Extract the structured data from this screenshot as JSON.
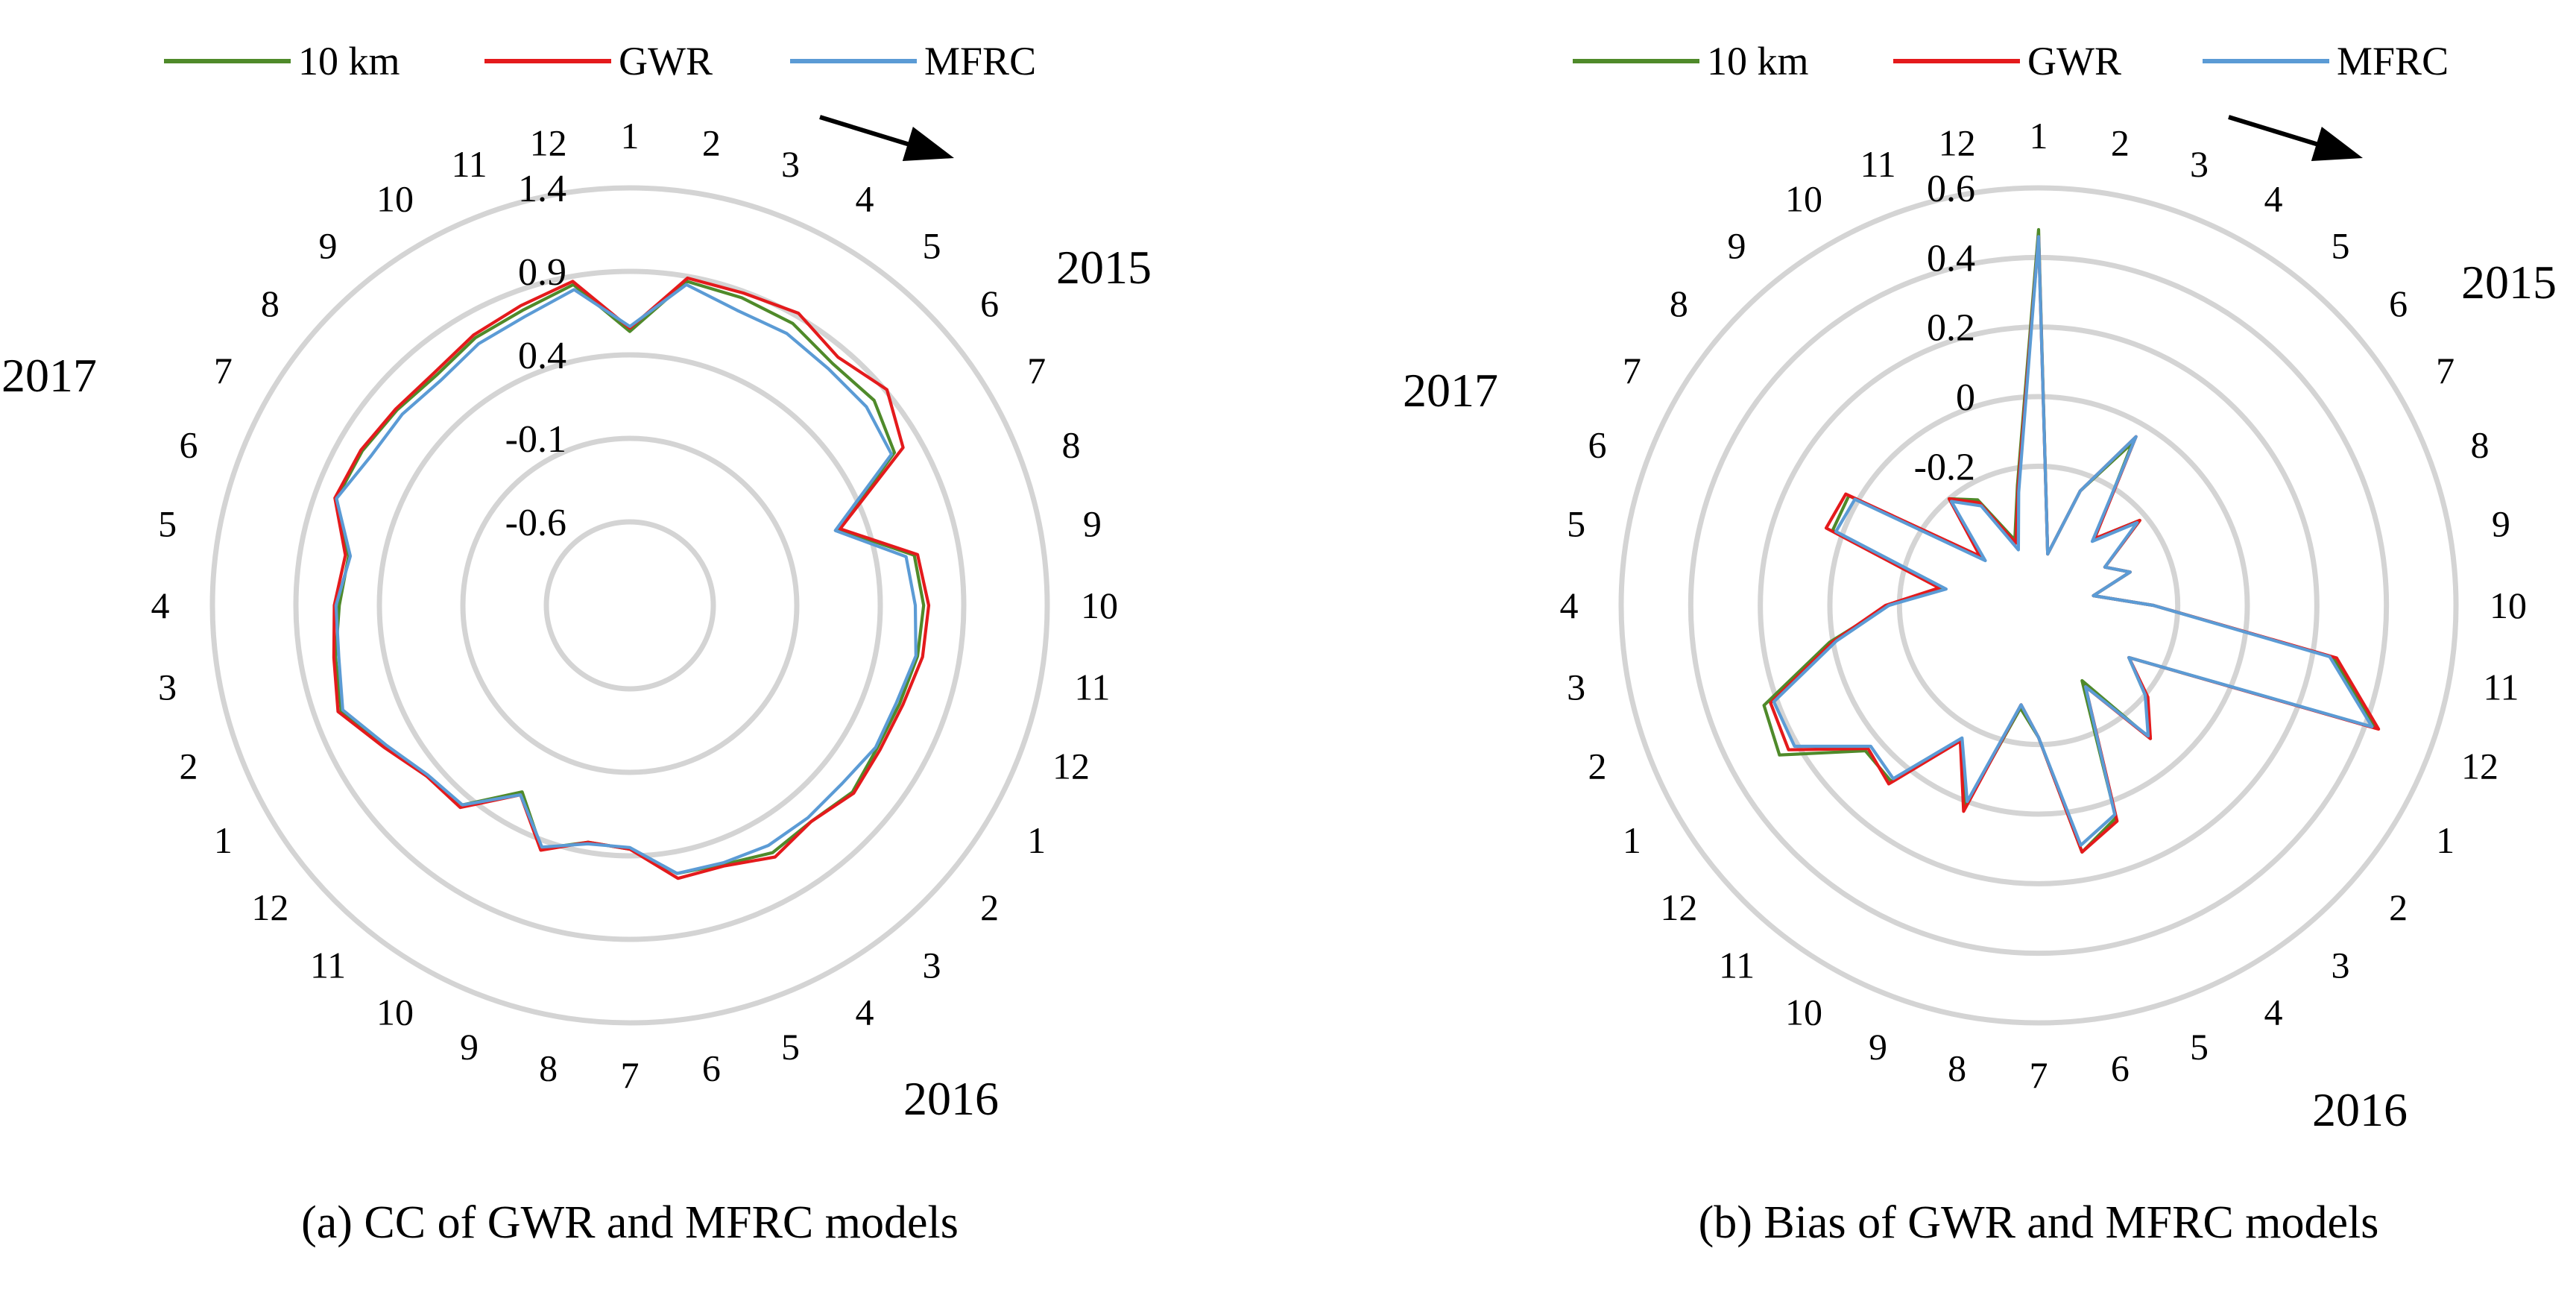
{
  "legend": [
    {
      "name": "10 km",
      "color": "#4f8a2a"
    },
    {
      "name": "GWR",
      "color": "#e41a1c"
    },
    {
      "name": "MFRC",
      "color": "#5b9bd5"
    }
  ],
  "chart_data": [
    {
      "type": "radar",
      "title": "(a) CC of GWR and MFRC models",
      "rlim": [
        -1.1,
        1.4
      ],
      "ticks": [
        "-0.6",
        "-0.1",
        "0.4",
        "0.9",
        "1.4"
      ],
      "tick_values": [
        -0.6,
        -0.1,
        0.4,
        0.9,
        1.4
      ],
      "categories": [
        "1",
        "2",
        "3",
        "4",
        "5",
        "6",
        "7",
        "8",
        "9",
        "10",
        "11",
        "12",
        "1",
        "2",
        "3",
        "4",
        "5",
        "6",
        "7",
        "8",
        "9",
        "10",
        "11",
        "12",
        "1",
        "2",
        "3",
        "4",
        "5",
        "6",
        "7",
        "8",
        "9",
        "10",
        "11",
        "12"
      ],
      "year_labels": [
        "2015",
        "2016",
        "2017"
      ],
      "series": [
        {
          "name": "10 km",
          "values": [
            0.54,
            0.87,
            0.86,
            0.85,
            0.79,
            0.81,
            0.73,
            0.23,
            0.63,
            0.66,
            0.65,
            0.62,
            0.61,
            0.64,
            0.59,
            0.61,
            0.55,
            0.53,
            0.36,
            0.34,
            0.45,
            0.19,
            0.46,
            0.49,
            0.59,
            0.74,
            0.69,
            0.64,
            0.61,
            0.77,
            0.75,
            0.72,
            0.7,
            0.75,
            0.78,
            0.85
          ]
        },
        {
          "name": "GWR",
          "values": [
            0.56,
            0.89,
            0.89,
            0.92,
            0.84,
            0.91,
            0.79,
            0.24,
            0.65,
            0.69,
            0.68,
            0.64,
            0.63,
            0.65,
            0.59,
            0.64,
            0.56,
            0.56,
            0.36,
            0.34,
            0.46,
            0.21,
            0.48,
            0.49,
            0.6,
            0.76,
            0.7,
            0.67,
            0.63,
            0.78,
            0.76,
            0.73,
            0.72,
            0.77,
            0.81,
            0.87
          ]
        },
        {
          "name": "MFRC",
          "values": [
            0.57,
            0.85,
            0.78,
            0.78,
            0.75,
            0.75,
            0.71,
            0.21,
            0.58,
            0.61,
            0.64,
            0.6,
            0.6,
            0.56,
            0.56,
            0.56,
            0.54,
            0.53,
            0.35,
            0.35,
            0.44,
            0.21,
            0.46,
            0.48,
            0.58,
            0.73,
            0.67,
            0.66,
            0.6,
            0.77,
            0.69,
            0.68,
            0.66,
            0.71,
            0.74,
            0.82
          ]
        }
      ],
      "caption": "(a) CC of GWR and MFRC models"
    },
    {
      "type": "radar",
      "title": "(b) Bias of GWR and MFRC models",
      "rlim": [
        -0.6,
        0.6
      ],
      "ticks": [
        "-0.2",
        "0",
        "0.2",
        "0.4",
        "0.6"
      ],
      "tick_values": [
        -0.2,
        0.0,
        0.2,
        0.4,
        0.6
      ],
      "categories": [
        "1",
        "2",
        "3",
        "4",
        "5",
        "6",
        "7",
        "8",
        "9",
        "10",
        "11",
        "12",
        "1",
        "2",
        "3",
        "4",
        "5",
        "6",
        "7",
        "8",
        "9",
        "10",
        "11",
        "12",
        "1",
        "2",
        "3",
        "4",
        "5",
        "6",
        "7",
        "8",
        "9",
        "10",
        "11",
        "12"
      ],
      "year_labels": [
        "2015",
        "2016",
        "2017"
      ],
      "series": [
        {
          "name": "10 km",
          "values": [
            0.48,
            -0.45,
            -0.25,
            -0.06,
            -0.35,
            -0.22,
            -0.38,
            -0.32,
            -0.44,
            -0.27,
            0.26,
            0.43,
            -0.3,
            -0.2,
            -0.1,
            -0.35,
            0.05,
            0.12,
            -0.22,
            -0.3,
            0.01,
            -0.15,
            0.06,
            0.05,
            0.26,
            0.24,
            0.01,
            -0.17,
            -0.32,
            0.03,
            0.03,
            -0.39,
            -0.2,
            -0.25,
            -0.4,
            -0.25
          ]
        },
        {
          "name": "GWR",
          "values": [
            0.46,
            -0.45,
            -0.25,
            -0.04,
            -0.35,
            -0.22,
            -0.38,
            -0.32,
            -0.44,
            -0.27,
            0.27,
            0.44,
            -0.3,
            -0.19,
            -0.1,
            -0.33,
            0.06,
            0.12,
            -0.22,
            -0.31,
            0.03,
            -0.15,
            0.07,
            0.04,
            0.23,
            0.22,
            0.0,
            -0.16,
            -0.31,
            0.05,
            0.04,
            -0.38,
            -0.2,
            -0.26,
            -0.41,
            -0.26
          ]
        },
        {
          "name": "MFRC",
          "values": [
            0.46,
            -0.45,
            -0.25,
            -0.04,
            -0.36,
            -0.23,
            -0.38,
            -0.32,
            -0.44,
            -0.27,
            0.25,
            0.42,
            -0.3,
            -0.2,
            -0.11,
            -0.33,
            0.04,
            0.1,
            -0.22,
            -0.31,
            0.0,
            -0.16,
            0.05,
            0.03,
            0.21,
            0.21,
            -0.01,
            -0.17,
            -0.33,
            0.02,
            0.01,
            -0.4,
            -0.21,
            -0.27,
            -0.43,
            -0.27
          ]
        }
      ],
      "caption": "(b) Bias of GWR and MFRC models"
    }
  ]
}
